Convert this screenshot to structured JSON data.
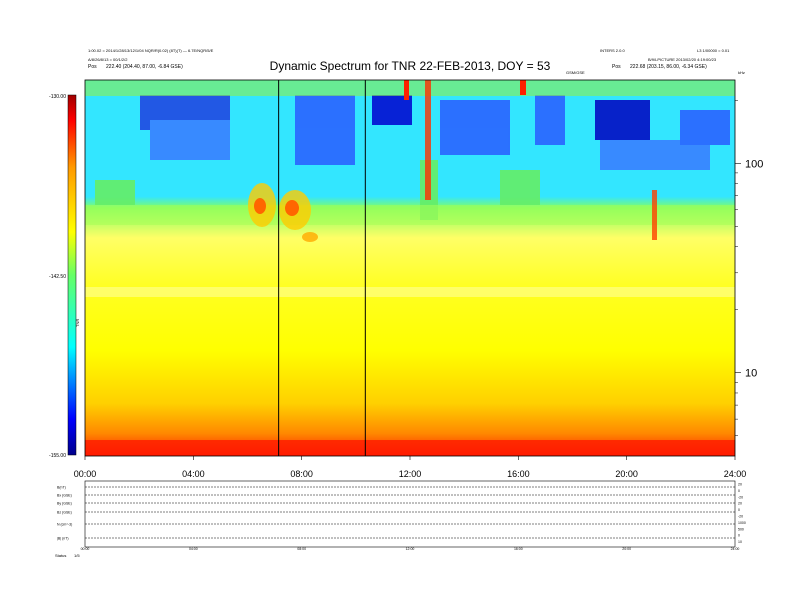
{
  "header": {
    "left_line1": "1:00.02 = 2014/1/28/13/12/1/04 NQR/R(0.02) (8T)(T) — 6.7E/NQR/5/E",
    "left_line2": "A/8/26/8/13 = 00/1/2/2",
    "left_line3_label": "Pos",
    "left_line3_value": "222.40 (204.40, 87.00, -6.84 GSE)",
    "right_line1a": "INTERS 2.0.0",
    "right_line1b": "L3 1/00000 = 0.01",
    "right_line2": "B/9/LPICTURE 2013/02/20 4:19:00/23",
    "right_line3_label": "Pos",
    "right_line3_value": "222.68 (203.15, 86.00, -6.34 GSE)",
    "mid_small": "GSM/GSE",
    "far_right_small": "kHz"
  },
  "chart_data": {
    "type": "heatmap",
    "title": "Dynamic Spectrum for TNR 22-FEB-2013, DOY = 53",
    "x_ticks": [
      "00:00",
      "04:00",
      "08:00",
      "12:00",
      "16:00",
      "20:00",
      "24:00"
    ],
    "x_range_hours": [
      0,
      24
    ],
    "y_scale": "log",
    "y_ticks": [
      10,
      100
    ],
    "y_range_khz": [
      4,
      250
    ],
    "colorbar": {
      "min_label": "-155.00",
      "mid_label": "-142.50",
      "max_label": "-130.00",
      "unit_label": "TNR",
      "colors": [
        "#000080",
        "#0000ff",
        "#00ffff",
        "#ffff00",
        "#ff8000",
        "#ff0000",
        "#800000"
      ]
    },
    "marker_lines_hours": [
      7.15,
      10.35
    ]
  },
  "lower_panel": {
    "row_labels": [
      "B(nT)",
      "Bx (GSE)",
      "By (GSE)",
      "Bz (GSE)",
      "N (cm^-3)",
      "|B| (nT)"
    ],
    "right_labels": [
      "20",
      "0",
      "-20",
      "20",
      "0",
      "-20",
      "1000",
      "500",
      "0",
      "10"
    ],
    "x_ticks": [
      "00:00",
      "04:00",
      "08:00",
      "12:00",
      "16:00",
      "20:00",
      "24:00"
    ],
    "footer_label": "Status",
    "footer_value": "1/5"
  }
}
